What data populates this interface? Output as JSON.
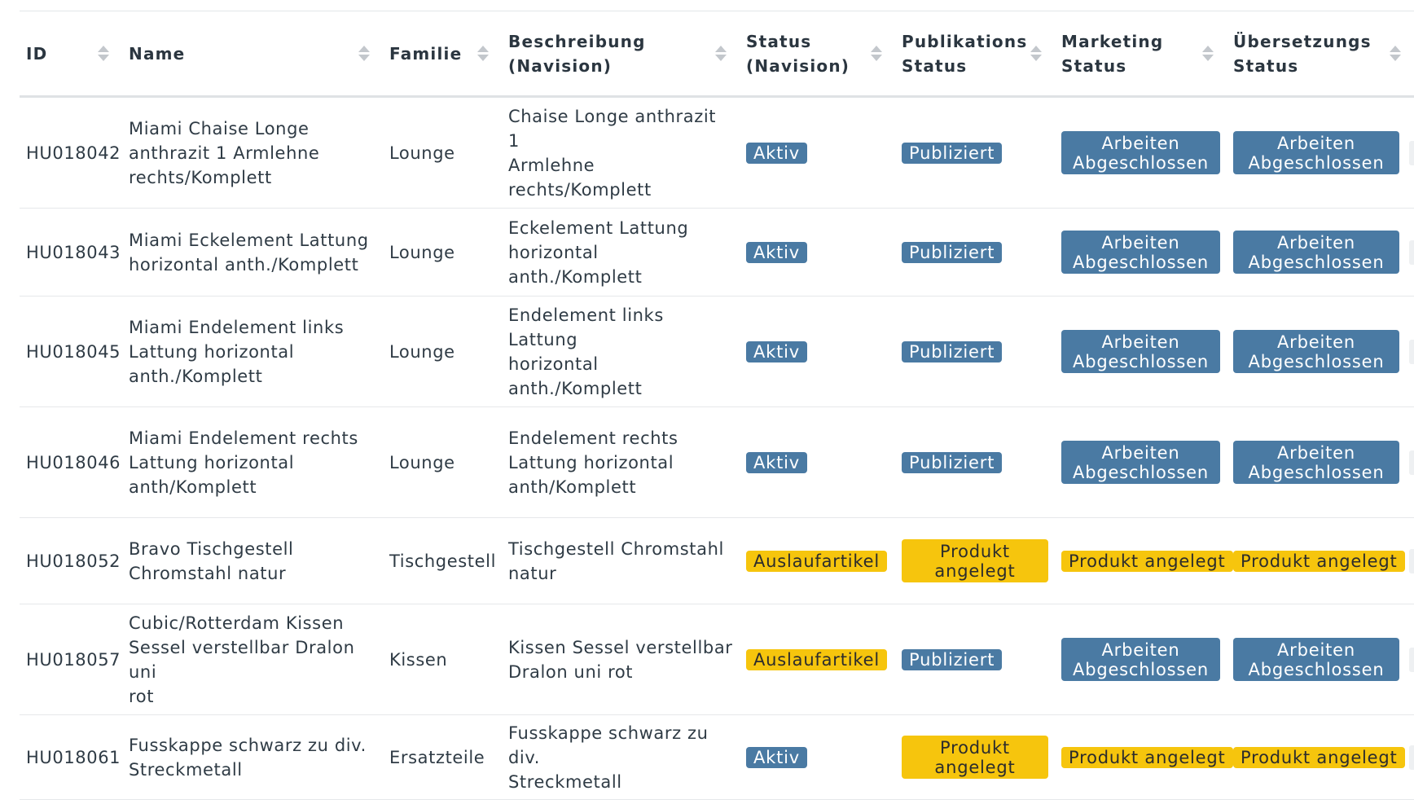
{
  "headers": {
    "id": "ID",
    "name": "Name",
    "family": "Familie",
    "description": [
      "Beschreibung",
      "(Navision)"
    ],
    "status": [
      "Status",
      "(Navision)"
    ],
    "publication": [
      "Publikations",
      "Status"
    ],
    "marketing": [
      "Marketing",
      "Status"
    ],
    "translation": [
      "Übersetzungs",
      "Status"
    ]
  },
  "colors": {
    "badge_blue": "#4a7aa3",
    "badge_yellow": "#f6c50d"
  },
  "rows": [
    {
      "id": "HU018042",
      "name": [
        "Miami Chaise Longe",
        "anthrazit 1 Armlehne",
        "rechts/Komplett"
      ],
      "family": "Lounge",
      "description": [
        "Chaise Longe anthrazit 1",
        "Armlehne rechts/Komplett"
      ],
      "status": {
        "label": "Aktiv",
        "color": "blue"
      },
      "publication": {
        "label": [
          "Publiziert"
        ],
        "color": "blue"
      },
      "marketing": {
        "label": [
          "Arbeiten",
          "Abgeschlossen"
        ],
        "color": "blue"
      },
      "translation": {
        "label": [
          "Arbeiten",
          "Abgeschlossen"
        ],
        "color": "blue"
      }
    },
    {
      "id": "HU018043",
      "name": [
        "Miami Eckelement Lattung",
        "horizontal anth./Komplett"
      ],
      "family": "Lounge",
      "description": [
        "Eckelement Lattung",
        "horizontal anth./Komplett"
      ],
      "status": {
        "label": "Aktiv",
        "color": "blue"
      },
      "publication": {
        "label": [
          "Publiziert"
        ],
        "color": "blue"
      },
      "marketing": {
        "label": [
          "Arbeiten",
          "Abgeschlossen"
        ],
        "color": "blue"
      },
      "translation": {
        "label": [
          "Arbeiten",
          "Abgeschlossen"
        ],
        "color": "blue"
      }
    },
    {
      "id": "HU018045",
      "name": [
        "Miami Endelement links",
        "Lattung horizontal",
        "anth./Komplett"
      ],
      "family": "Lounge",
      "description": [
        "Endelement links Lattung",
        "horizontal anth./Komplett"
      ],
      "status": {
        "label": "Aktiv",
        "color": "blue"
      },
      "publication": {
        "label": [
          "Publiziert"
        ],
        "color": "blue"
      },
      "marketing": {
        "label": [
          "Arbeiten",
          "Abgeschlossen"
        ],
        "color": "blue"
      },
      "translation": {
        "label": [
          "Arbeiten",
          "Abgeschlossen"
        ],
        "color": "blue"
      }
    },
    {
      "id": "HU018046",
      "name": [
        "Miami Endelement rechts",
        "Lattung horizontal",
        "anth/Komplett"
      ],
      "family": "Lounge",
      "description": [
        "Endelement rechts",
        "Lattung horizontal",
        "anth/Komplett"
      ],
      "status": {
        "label": "Aktiv",
        "color": "blue"
      },
      "publication": {
        "label": [
          "Publiziert"
        ],
        "color": "blue"
      },
      "marketing": {
        "label": [
          "Arbeiten",
          "Abgeschlossen"
        ],
        "color": "blue"
      },
      "translation": {
        "label": [
          "Arbeiten",
          "Abgeschlossen"
        ],
        "color": "blue"
      }
    },
    {
      "id": "HU018052",
      "name": [
        "Bravo Tischgestell",
        "Chromstahl natur"
      ],
      "family": "Tischgestell",
      "description": [
        "Tischgestell Chromstahl",
        "natur"
      ],
      "status": {
        "label": "Auslaufartikel",
        "color": "yellow"
      },
      "publication": {
        "label": [
          "Produkt",
          "angelegt"
        ],
        "color": "yellow"
      },
      "marketing": {
        "label": [
          "Produkt angelegt"
        ],
        "color": "yellow"
      },
      "translation": {
        "label": [
          "Produkt angelegt"
        ],
        "color": "yellow"
      }
    },
    {
      "id": "HU018057",
      "name": [
        "Cubic/Rotterdam Kissen",
        "Sessel verstellbar Dralon uni",
        "rot"
      ],
      "family": "Kissen",
      "description": [
        "Kissen Sessel verstellbar",
        "Dralon uni rot"
      ],
      "status": {
        "label": "Auslaufartikel",
        "color": "yellow"
      },
      "publication": {
        "label": [
          "Publiziert"
        ],
        "color": "blue"
      },
      "marketing": {
        "label": [
          "Arbeiten",
          "Abgeschlossen"
        ],
        "color": "blue"
      },
      "translation": {
        "label": [
          "Arbeiten",
          "Abgeschlossen"
        ],
        "color": "blue"
      }
    },
    {
      "id": "HU018061",
      "name": [
        "Fusskappe schwarz zu div.",
        "Streckmetall"
      ],
      "family": "Ersatzteile",
      "description": [
        "Fusskappe schwarz zu div.",
        "Streckmetall"
      ],
      "status": {
        "label": "Aktiv",
        "color": "blue"
      },
      "publication": {
        "label": [
          "Produkt",
          "angelegt"
        ],
        "color": "yellow"
      },
      "marketing": {
        "label": [
          "Produkt angelegt"
        ],
        "color": "yellow"
      },
      "translation": {
        "label": [
          "Produkt angelegt"
        ],
        "color": "yellow"
      }
    }
  ]
}
